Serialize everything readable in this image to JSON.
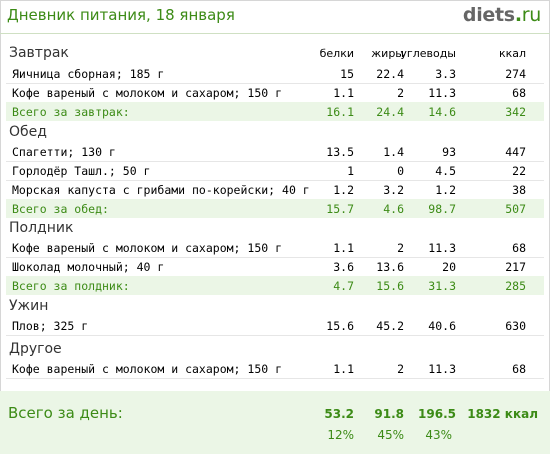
{
  "header": {
    "title": "Дневник питания, 18 января",
    "logo_main": "diets",
    "logo_dot": ".",
    "logo_tld": "ru"
  },
  "columns": {
    "protein": "белки",
    "fat": "жиры",
    "carbs": "углеводы",
    "kcal": "ккал"
  },
  "sections": [
    {
      "name": "Завтрак",
      "items": [
        {
          "name": "Яичница сборная; 185 г",
          "protein": "15",
          "fat": "22.4",
          "carbs": "3.3",
          "kcal": "274"
        },
        {
          "name": "Кофе вареный с молоком и сахаром; 150 г",
          "protein": "1.1",
          "fat": "2",
          "carbs": "11.3",
          "kcal": "68"
        }
      ],
      "total": {
        "label": "Всего за завтрак:",
        "protein": "16.1",
        "fat": "24.4",
        "carbs": "14.6",
        "kcal": "342"
      }
    },
    {
      "name": "Обед",
      "items": [
        {
          "name": "Спагетти; 130 г",
          "protein": "13.5",
          "fat": "1.4",
          "carbs": "93",
          "kcal": "447"
        },
        {
          "name": "Горлодёр Ташл.; 50 г",
          "protein": "1",
          "fat": "0",
          "carbs": "4.5",
          "kcal": "22"
        },
        {
          "name": "Морская капуста с грибами по-корейски; 40 г",
          "protein": "1.2",
          "fat": "3.2",
          "carbs": "1.2",
          "kcal": "38"
        }
      ],
      "total": {
        "label": "Всего за обед:",
        "protein": "15.7",
        "fat": "4.6",
        "carbs": "98.7",
        "kcal": "507"
      }
    },
    {
      "name": "Полдник",
      "items": [
        {
          "name": "Кофе вареный с молоком и сахаром; 150 г",
          "protein": "1.1",
          "fat": "2",
          "carbs": "11.3",
          "kcal": "68"
        },
        {
          "name": "Шоколад молочный; 40 г",
          "protein": "3.6",
          "fat": "13.6",
          "carbs": "20",
          "kcal": "217"
        }
      ],
      "total": {
        "label": "Всего за полдник:",
        "protein": "4.7",
        "fat": "15.6",
        "carbs": "31.3",
        "kcal": "285"
      }
    },
    {
      "name": "Ужин",
      "items": [
        {
          "name": "Плов; 325 г",
          "protein": "15.6",
          "fat": "45.2",
          "carbs": "40.6",
          "kcal": "630"
        }
      ]
    },
    {
      "name": "Другое",
      "items": [
        {
          "name": "Кофе вареный с молоком и сахаром; 150 г",
          "protein": "1.1",
          "fat": "2",
          "carbs": "11.3",
          "kcal": "68"
        }
      ]
    }
  ],
  "day_total": {
    "label": "Всего за день:",
    "protein": "53.2",
    "fat": "91.8",
    "carbs": "196.5",
    "kcal": "1832 ккал",
    "protein_pct": "12%",
    "fat_pct": "45%",
    "carbs_pct": "43%"
  },
  "colors": {
    "accent": "#3c8b16",
    "total_bg": "#ebf6e6"
  }
}
